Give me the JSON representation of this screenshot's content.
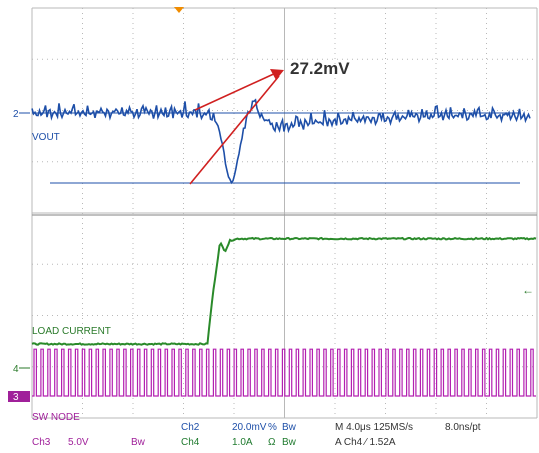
{
  "colors": {
    "ch2": "#1e4fa8",
    "ch4": "#2a8a2a",
    "ch3": "#b320b0",
    "grid": "#b8b8b8",
    "annotation": "#d02020",
    "trigger": "#f08c00"
  },
  "annotation": {
    "text": "27.2mV"
  },
  "labels": {
    "vout": "VOUT",
    "load": "LOAD CURRENT",
    "sw": "SW NODE",
    "marker2": "2",
    "marker4": "4",
    "marker3": "3"
  },
  "readout": {
    "ch2": {
      "name": "Ch2",
      "scale": "20.0mV",
      "coupling": "%",
      "bw": "Bw"
    },
    "ch4": {
      "name": "Ch4",
      "scale": "1.0A",
      "coupling": "Ω",
      "bw": "Bw"
    },
    "ch3": {
      "name": "Ch3",
      "scale": "5.0V",
      "bw": "Bw"
    },
    "timebase": "M 4.0μs 125MS/s",
    "resolution": "8.0ns/pt",
    "trigger": "A  Ch4  ⁄  1.52A"
  },
  "chart_data": {
    "type": "line",
    "series": [
      {
        "name": "VOUT",
        "channel": "Ch2",
        "unit": "mV",
        "x_us": [
          -20,
          -6,
          -5.2,
          -4.8,
          -4.4,
          -4,
          -3.6,
          -3,
          -2.4,
          -1.8,
          -1,
          0,
          2,
          4,
          8,
          12,
          20
        ],
        "y_mV": [
          0,
          0,
          -4,
          -12,
          -24,
          -27,
          -18,
          -4,
          4,
          0,
          -5,
          -6,
          -4,
          -3,
          -2,
          -1,
          -1
        ]
      },
      {
        "name": "LOAD CURRENT",
        "channel": "Ch4",
        "unit": "A",
        "x_us": [
          -20,
          -6,
          -5.6,
          -5,
          -4.6,
          -4.2,
          -3.6,
          20
        ],
        "y_A": [
          0,
          0,
          1.3,
          2.85,
          2.6,
          2.9,
          2.95,
          2.95
        ]
      },
      {
        "name": "SW NODE",
        "channel": "Ch3",
        "unit": "V",
        "low_V": 0,
        "high_V": 12
      }
    ],
    "annotation": {
      "text": "27.2mV",
      "from_mV": -27,
      "to_mV": 0
    },
    "grid": true
  }
}
